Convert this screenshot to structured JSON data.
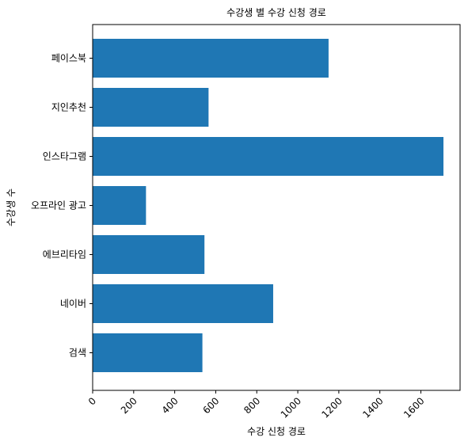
{
  "chart_data": {
    "type": "bar",
    "orientation": "horizontal",
    "title": "수강생 별 수강 신청 경로",
    "xlabel": "수강 신청 경로",
    "ylabel": "수강생 수",
    "categories": [
      "페이스북",
      "지인추천",
      "인스타그램",
      "오프라인 광고",
      "에브리타임",
      "네이버",
      "검색"
    ],
    "values": [
      1150,
      565,
      1710,
      260,
      545,
      880,
      535
    ],
    "xlim": [
      0,
      1800
    ],
    "xticks": [
      0,
      200,
      400,
      600,
      800,
      1000,
      1200,
      1400,
      1600
    ],
    "xtick_rotation": 45,
    "grid": false,
    "legend": "none",
    "bar_color": "#1f77b4"
  }
}
